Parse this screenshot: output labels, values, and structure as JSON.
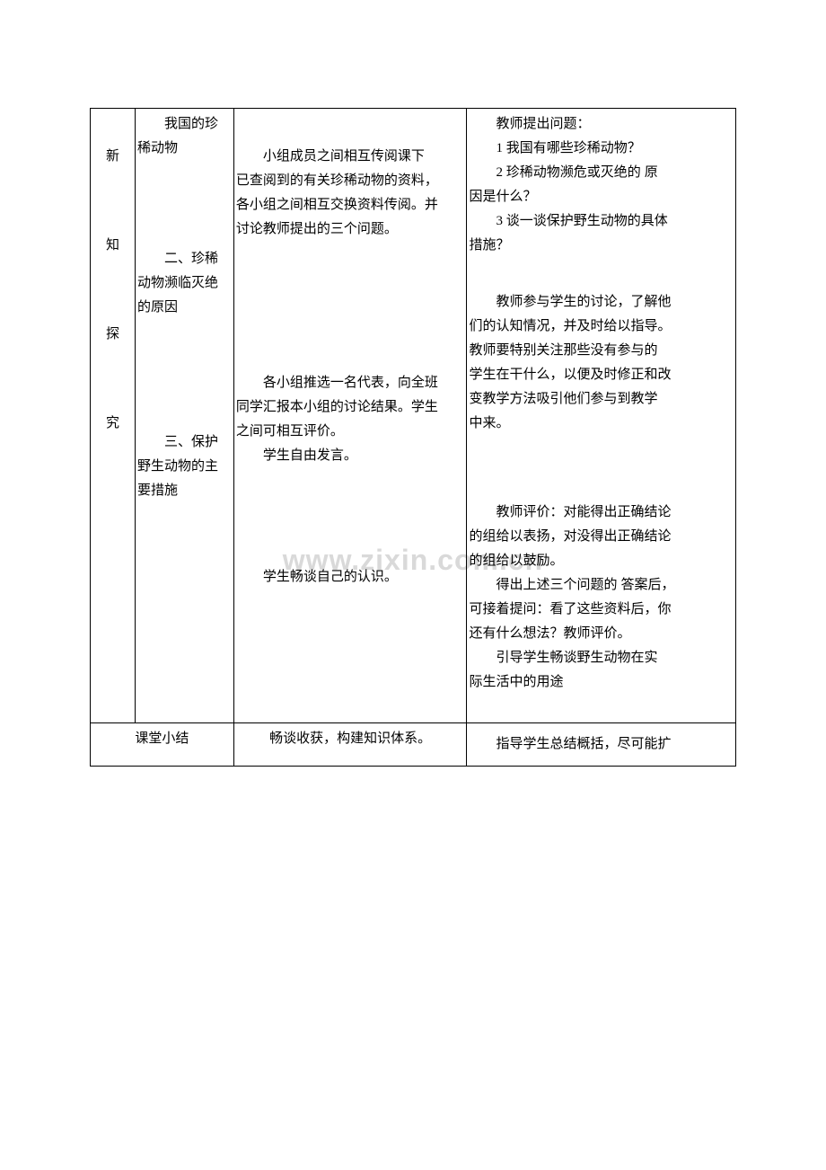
{
  "watermark": "www.zixin.com.cn",
  "row1": {
    "sectionChars": [
      "新",
      "知",
      "探",
      "究"
    ],
    "topic": {
      "line1_pre": "我国的珍",
      "line1_post": "稀动物",
      "line2_pre": "二、珍稀",
      "line2_mid": "动物濒临灭绝",
      "line2_post": "的原因",
      "line3_pre": "三、保护",
      "line3_mid": "野生动物的主",
      "line3_post": "要措施"
    },
    "student": {
      "p1_a": "小组成员之间相互传阅课下",
      "p1_b": "已查阅到的有关珍稀动物的资料，",
      "p1_c": "各小组之间相互交换资料传阅。并",
      "p1_d": "讨论教师提出的三个问题。",
      "p2_a": "各小组推选一名代表，向全班",
      "p2_b": "同学汇报本小组的讨论结果。学生",
      "p2_c": "之间可相互评价。",
      "p3": "学生自由发言。",
      "p4": "学生畅谈自己的认识。"
    },
    "teacher": {
      "p1": "教师提出问题：",
      "p2": "1 我国有哪些珍稀动物？",
      "p3_a": "2 珍稀动物濒危或灭绝的",
      "p3_b": "原",
      "p3_c": "因是什么？",
      "p4_a": "3 谈一谈保护野生动物的具体",
      "p4_b": "措施？",
      "p5_a": "教师参与学生的讨论，了解他",
      "p5_b": "们的认知情况，并及时给以指导。",
      "p5_c": "教师要特别关注那些没有参与的",
      "p5_d": "学生在干什么，以便及时修正和改",
      "p5_e": "变教学方法吸引他们参与到教学",
      "p5_f": "中来。",
      "p6_a": "教师评价：对能得出正确结论",
      "p6_b": "的组给以表扬，对没得出正确结论",
      "p6_c": "的组给以鼓励。",
      "p7_a": "得出上述三个问题的",
      "p7_b": "答案后，",
      "p7_c": "可接着提问：看了这些资料后，你",
      "p7_d": "还有什么想法？教师评价。",
      "p8_a": "引导学生畅谈野生动物在实",
      "p8_b": "际生活中的用途"
    }
  },
  "row2": {
    "label": "课堂小结",
    "student": "畅谈收获，构建知识体系。",
    "teacher": "指导学生总结概括，尽可能扩"
  },
  "colors": {
    "text": "#000000",
    "border": "#000000",
    "background": "#ffffff",
    "watermark": "#d9d9d9",
    "dotOrange": "#c08840",
    "dotYellow": "#d4c050"
  }
}
